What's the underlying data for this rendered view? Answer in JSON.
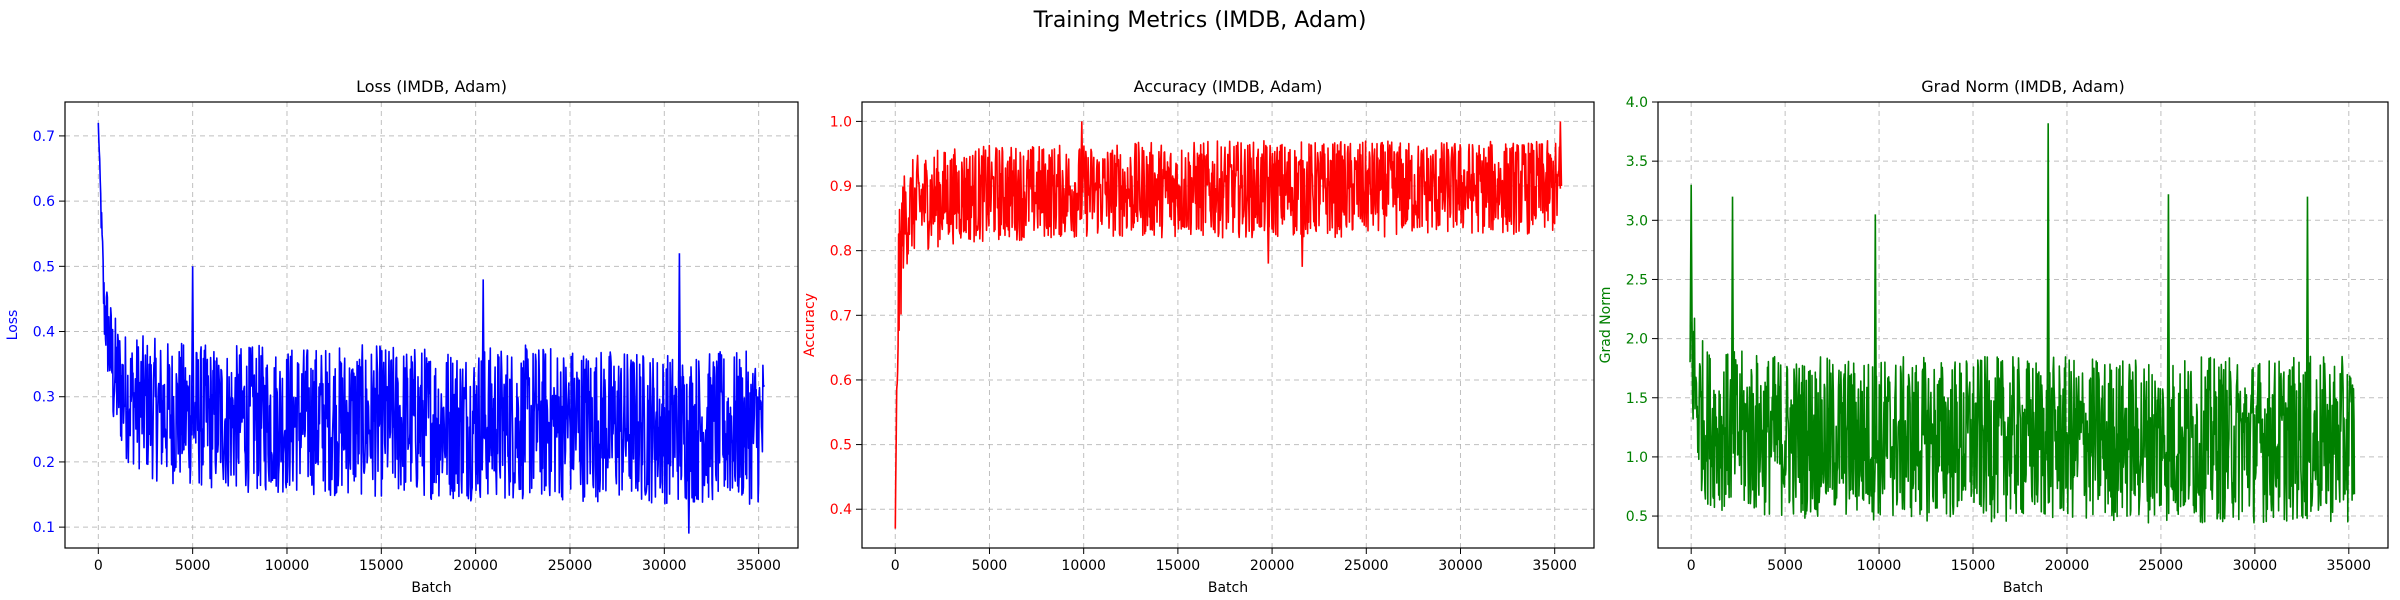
{
  "figure": {
    "title": "Training Metrics (IMDB, Adam)"
  },
  "chart_data": [
    {
      "type": "line",
      "title": "Loss (IMDB, Adam)",
      "xlabel": "Batch",
      "ylabel": "Loss",
      "color": "#0000ff",
      "xlim": [
        -1766,
        37086
      ],
      "ylim": [
        0.068,
        0.752
      ],
      "xticks": [
        0,
        5000,
        10000,
        15000,
        20000,
        25000,
        30000,
        35000
      ],
      "yticks": [
        0.1,
        0.2,
        0.3,
        0.4,
        0.5,
        0.6,
        0.7
      ],
      "grid": true,
      "series": [
        {
          "x": [
            0,
            300,
            800,
            1500,
            3000,
            6000,
            10000,
            15000,
            20000,
            25000,
            30000,
            35300
          ],
          "mean": [
            0.72,
            0.45,
            0.33,
            0.29,
            0.27,
            0.255,
            0.25,
            0.245,
            0.24,
            0.24,
            0.235,
            0.235
          ],
          "band_low": [
            0.72,
            0.38,
            0.24,
            0.2,
            0.17,
            0.155,
            0.15,
            0.145,
            0.14,
            0.14,
            0.135,
            0.135
          ],
          "band_high": [
            0.72,
            0.5,
            0.43,
            0.4,
            0.39,
            0.38,
            0.38,
            0.38,
            0.38,
            0.38,
            0.37,
            0.37
          ],
          "spikes": [
            [
              5000,
              0.5
            ],
            [
              30800,
              0.52
            ],
            [
              20400,
              0.48
            ],
            [
              31300,
              0.09
            ]
          ]
        }
      ]
    },
    {
      "type": "line",
      "title": "Accuracy (IMDB, Adam)",
      "xlabel": "Batch",
      "ylabel": "Accuracy",
      "color": "#ff0000",
      "xlim": [
        -1766,
        37086
      ],
      "ylim": [
        0.34,
        1.03
      ],
      "xticks": [
        0,
        5000,
        10000,
        15000,
        20000,
        25000,
        30000,
        35000
      ],
      "yticks": [
        0.4,
        0.5,
        0.6,
        0.7,
        0.8,
        0.9,
        1.0
      ],
      "grid": true,
      "series": [
        {
          "x": [
            0,
            150,
            400,
            800,
            1500,
            3000,
            6000,
            10000,
            15000,
            20000,
            25000,
            30000,
            35300
          ],
          "mean": [
            0.37,
            0.7,
            0.83,
            0.86,
            0.875,
            0.88,
            0.885,
            0.89,
            0.895,
            0.895,
            0.895,
            0.9,
            0.9
          ],
          "band_low": [
            0.37,
            0.6,
            0.76,
            0.79,
            0.8,
            0.81,
            0.815,
            0.82,
            0.82,
            0.82,
            0.82,
            0.825,
            0.825
          ],
          "band_high": [
            0.37,
            0.84,
            0.92,
            0.94,
            0.955,
            0.96,
            0.965,
            0.965,
            0.97,
            0.97,
            0.97,
            0.97,
            0.97
          ],
          "spikes": [
            [
              9900,
              1.0
            ],
            [
              35300,
              1.0
            ],
            [
              19800,
              0.78
            ],
            [
              21600,
              0.775
            ]
          ]
        }
      ]
    },
    {
      "type": "line",
      "title": "Grad Norm (IMDB, Adam)",
      "xlabel": "Batch",
      "ylabel": "Grad Norm",
      "color": "#008000",
      "xlim": [
        -1766,
        37086
      ],
      "ylim": [
        0.23,
        4.0
      ],
      "xticks": [
        0,
        5000,
        10000,
        15000,
        20000,
        25000,
        30000,
        35000
      ],
      "yticks": [
        0.5,
        1.0,
        1.5,
        2.0,
        2.5,
        3.0,
        3.5,
        4.0
      ],
      "grid": true,
      "series": [
        {
          "x": [
            0,
            300,
            800,
            1500,
            3000,
            6000,
            10000,
            15000,
            20000,
            25000,
            30000,
            35300
          ],
          "mean": [
            1.8,
            1.3,
            1.1,
            1.05,
            1.0,
            1.0,
            0.98,
            0.97,
            0.97,
            0.96,
            0.96,
            0.96
          ],
          "band_low": [
            1.3,
            0.8,
            0.6,
            0.55,
            0.5,
            0.48,
            0.46,
            0.45,
            0.45,
            0.44,
            0.44,
            0.44
          ],
          "band_high": [
            2.6,
            2.1,
            1.95,
            1.9,
            1.9,
            1.85,
            1.85,
            1.85,
            1.85,
            1.85,
            1.85,
            1.85
          ],
          "spikes": [
            [
              0,
              3.3
            ],
            [
              19000,
              3.82
            ],
            [
              25400,
              3.22
            ],
            [
              2200,
              3.2
            ],
            [
              9800,
              3.05
            ],
            [
              32800,
              3.2
            ]
          ]
        }
      ]
    }
  ]
}
